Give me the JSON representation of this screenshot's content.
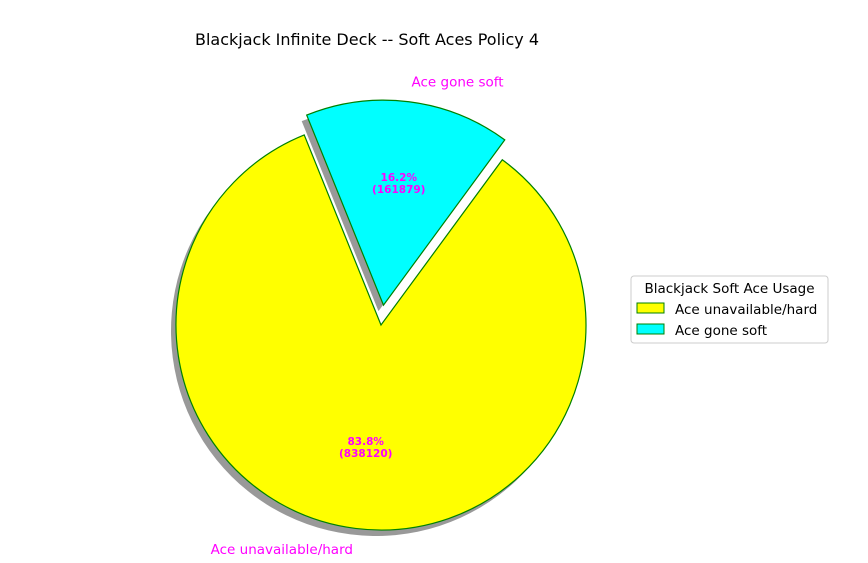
{
  "chart_data": {
    "type": "pie",
    "title": "Blackjack Infinite Deck -- Soft Aces Policy 4",
    "slices": [
      {
        "label": "Ace unavailable/hard",
        "value": 838120,
        "percent": "83.8%",
        "count_label": "(838120)",
        "color": "#ffff00"
      },
      {
        "label": "Ace gone soft",
        "value": 161879,
        "percent": "16.2%",
        "count_label": "(161879)",
        "color": "#00ffff"
      }
    ],
    "exploded": [
      "Ace gone soft"
    ],
    "start_angle_deg": 112,
    "shadow": true,
    "edge_color": "#008000",
    "label_color": "#ff00ff",
    "legend": {
      "title": "Blackjack Soft Ace Usage",
      "placement": "center-right",
      "items": [
        "Ace unavailable/hard",
        "Ace gone soft"
      ]
    }
  }
}
